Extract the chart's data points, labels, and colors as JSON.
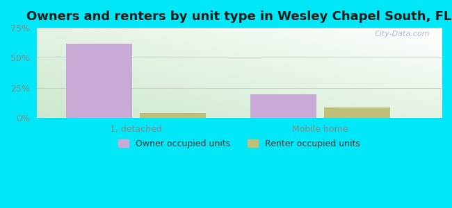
{
  "title": "Owners and renters by unit type in Wesley Chapel South, FL",
  "categories": [
    "1, detached",
    "Mobile home"
  ],
  "owner_values": [
    62.0,
    20.0
  ],
  "renter_values": [
    4.0,
    9.0
  ],
  "owner_color": "#c9aad6",
  "renter_color": "#bfbf78",
  "bar_width": 0.18,
  "group_positions": [
    0.22,
    0.72
  ],
  "bar_gap": 0.02,
  "ylim": [
    0,
    75
  ],
  "yticks": [
    0,
    25,
    50,
    75
  ],
  "yticklabels": [
    "0%",
    "25%",
    "50%",
    "75%"
  ],
  "background_color": "#00e8f8",
  "legend_labels": [
    "Owner occupied units",
    "Renter occupied units"
  ],
  "title_fontsize": 13,
  "watermark": "City-Data.com"
}
